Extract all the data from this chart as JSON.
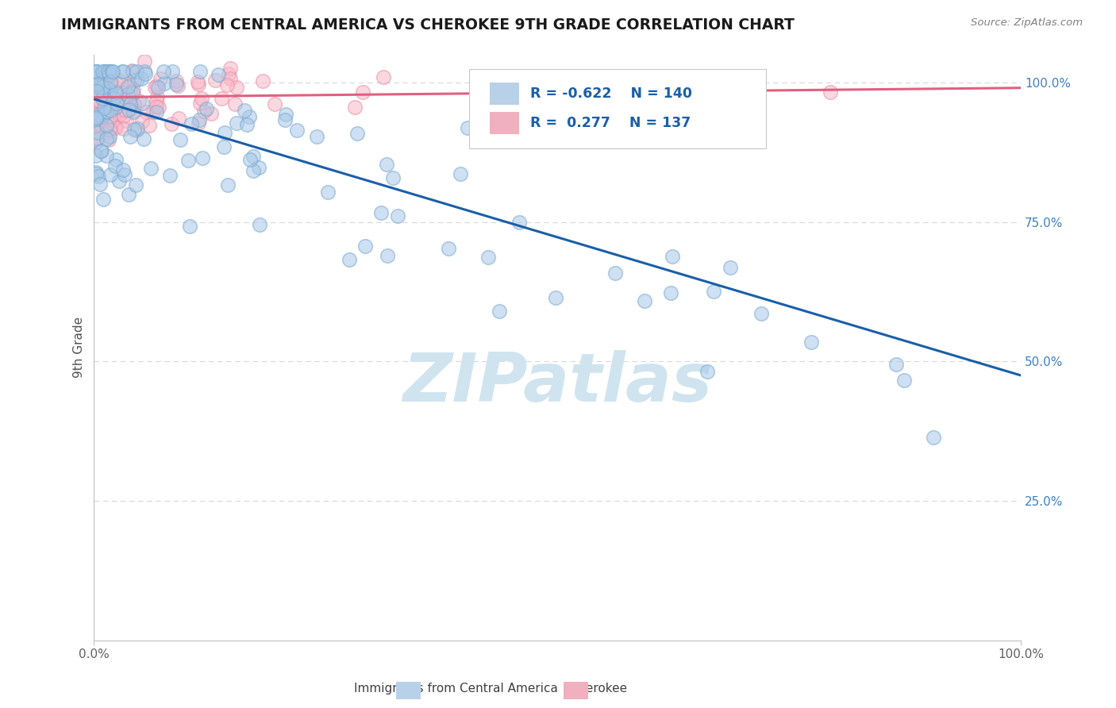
{
  "title": "IMMIGRANTS FROM CENTRAL AMERICA VS CHEROKEE 9TH GRADE CORRELATION CHART",
  "source": "Source: ZipAtlas.com",
  "ylabel": "9th Grade",
  "legend_r1": "R = -0.622",
  "legend_n1": "N = 140",
  "legend_r2": "R =  0.277",
  "legend_n2": "N = 137",
  "blue_face": "#a8c8e8",
  "blue_edge": "#7aaad0",
  "pink_face": "#f8b8c8",
  "pink_edge": "#e890a8",
  "blue_line_color": "#1a5fa8",
  "pink_line_color": "#e06080",
  "watermark_color": "#d0e4f0",
  "background_color": "#ffffff",
  "grid_color": "#d8d8d8",
  "title_color": "#1a1a1a",
  "tick_color_y": "#4080c0",
  "tick_color_x": "#606060",
  "blue_line_start_y": 0.97,
  "blue_line_end_y": 0.475,
  "pink_line_start_y": 0.973,
  "pink_line_end_y": 0.99,
  "xlim": [
    0.0,
    1.0
  ],
  "ylim": [
    0.0,
    1.05
  ],
  "yticks": [
    0.25,
    0.5,
    0.75,
    1.0
  ],
  "ytick_labels": [
    "25.0%",
    "50.0%",
    "75.0%",
    "100.0%"
  ]
}
